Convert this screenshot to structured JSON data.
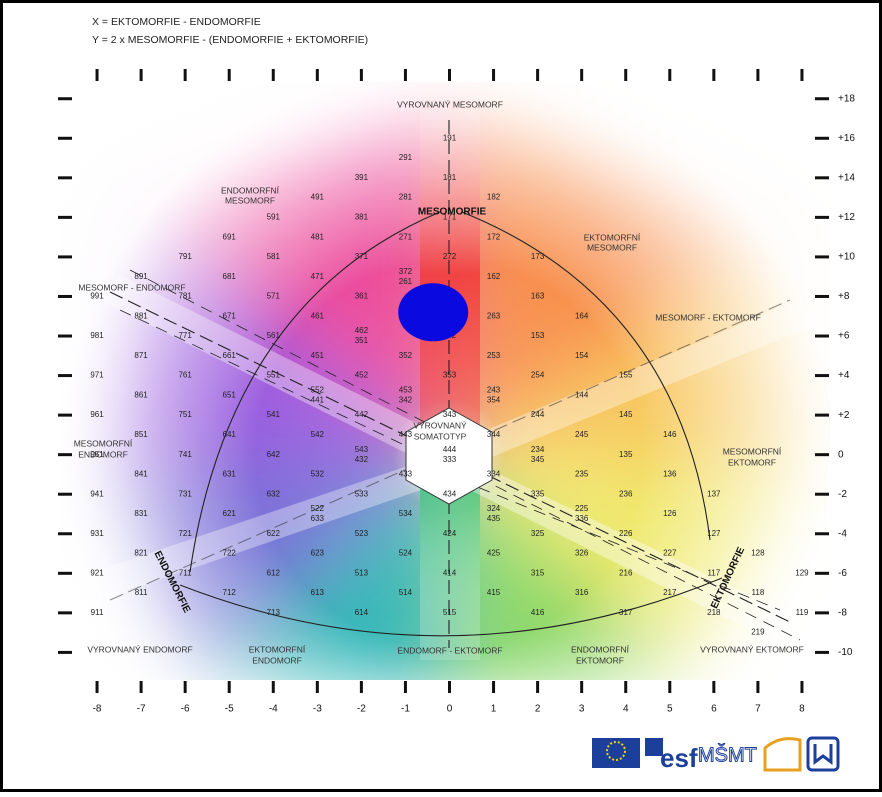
{
  "axis_formulas": [
    "X = EKTOMORFIE - ENDOMORFIE",
    "Y = 2 x MESOMORFIE - (ENDOMORFIE + EKTOMORFIE)"
  ],
  "chart_data": {
    "type": "somatochart",
    "xlim": [
      -8.7,
      8.7
    ],
    "ylim": [
      -11.8,
      19.2
    ],
    "xticks": [
      -8,
      -7,
      -6,
      -5,
      -4,
      -3,
      -2,
      -1,
      0,
      1,
      2,
      3,
      4,
      5,
      6,
      7,
      8
    ],
    "yticks": [
      {
        "value": 18,
        "label": "+18"
      },
      {
        "value": 16,
        "label": "+16"
      },
      {
        "value": 14,
        "label": "+14"
      },
      {
        "value": 12,
        "label": "+12"
      },
      {
        "value": 10,
        "label": "+10"
      },
      {
        "value": 8,
        "label": "+8"
      },
      {
        "value": 6,
        "label": "+6"
      },
      {
        "value": 4,
        "label": "+4"
      },
      {
        "value": 2,
        "label": "+2"
      },
      0,
      -2,
      -4,
      -6,
      -8,
      -10
    ],
    "codes": [
      "191",
      "291",
      "181",
      "391",
      "281",
      "182",
      "491",
      "381",
      "171",
      "591",
      "481",
      "271",
      "172",
      "691",
      "581",
      "371",
      "272",
      "173",
      "791",
      "681",
      "471",
      "372",
      "261",
      "162",
      "891",
      "781",
      "571",
      "361",
      "163",
      "991",
      "671",
      "461",
      "263",
      "164",
      "881",
      "771",
      "561",
      "462",
      "351",
      "252",
      "153",
      "981",
      "871",
      "661",
      "451",
      "352",
      "253",
      "154",
      "971",
      "761",
      "551",
      "552",
      "441",
      "452",
      "353",
      "243",
      "354",
      "254",
      "155",
      "861",
      "651",
      "453",
      "342",
      "144",
      "961",
      "751",
      "541",
      "442",
      "343",
      "244",
      "145",
      "851",
      "641",
      "542",
      "443",
      "344",
      "245",
      "146",
      "951",
      "741",
      "642",
      "543",
      "432",
      "444",
      "333",
      "234",
      "345",
      "135",
      "841",
      "631",
      "532",
      "433",
      "334",
      "235",
      "136",
      "941",
      "731",
      "632",
      "533",
      "434",
      "335",
      "236",
      "137",
      "831",
      "621",
      "522",
      "633",
      "534",
      "324",
      "435",
      "325",
      "225",
      "336",
      "126",
      "931",
      "721",
      "622",
      "523",
      "424",
      "226",
      "127",
      "821",
      "722",
      "623",
      "524",
      "425",
      "326",
      "227",
      "128",
      "921",
      "711",
      "612",
      "513",
      "414",
      "315",
      "216",
      "117",
      "129",
      "811",
      "712",
      "613",
      "514",
      "415",
      "316",
      "217",
      "118",
      "911",
      "713",
      "614",
      "515",
      "416",
      "317",
      "218",
      "119",
      "219"
    ],
    "point": {
      "x": -0.37,
      "y": 7.2,
      "color": "#0a0ae0"
    }
  },
  "regions": {
    "balanced_meso": "VYROVNANÝ MESOMORF",
    "endo_meso": [
      "ENDOMORFNÍ",
      "MESOMORF"
    ],
    "meso_axis": "MESOMORFIE",
    "ecto_meso": [
      "EKTOMORFNÍ",
      "MESOMORF"
    ],
    "meso_endo": "MESOMORF - ENDOMORF",
    "meso_ecto": "MESOMORF - EKTOMORF",
    "balanced_center": [
      "VYROVNANÝ",
      "SOMATOTYP"
    ],
    "mesomorphic_endo": [
      "MESOMORFNÍ",
      "ENDOMORF"
    ],
    "mesomorphic_ecto": [
      "MESOMORFNÍ",
      "EKTOMORF"
    ],
    "endo_axis": "ENDOMORFIE",
    "ecto_axis": "EKTOMORFIE",
    "balanced_endo": "VYROVNANÝ ENDOMORF",
    "ecto_endo": [
      "EKTOMORFNÍ",
      "ENDOMORF"
    ],
    "endo_ecto": "ENDOMORF - EKTOMORF",
    "endomorphic_ecto": [
      "ENDOMORFNÍ",
      "EKTOMORF"
    ],
    "balanced_ecto": "VYROVNANÝ EKTOMORF"
  },
  "logos": [
    "esf",
    "MŠMT"
  ]
}
